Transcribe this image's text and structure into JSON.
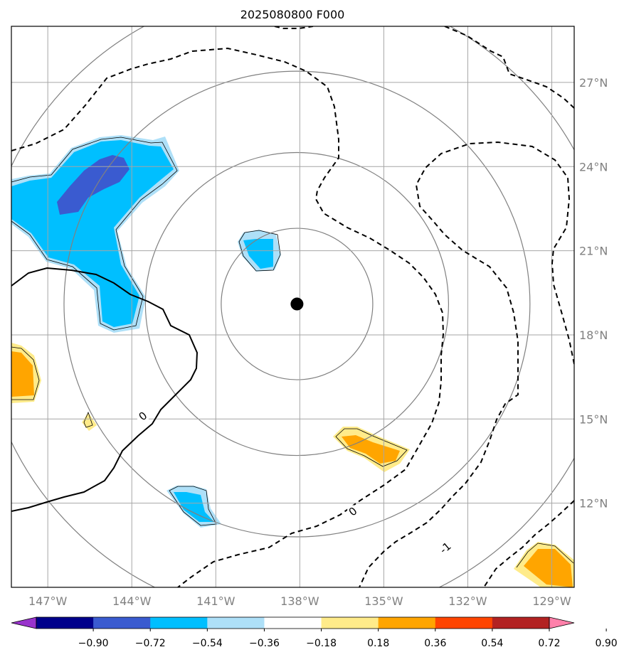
{
  "chart_data": {
    "type": "contour",
    "title": "2025080800 F000",
    "x_range": [
      -148.3,
      -128.2
    ],
    "y_range": [
      9.0,
      29.0
    ],
    "lon_ticks": [
      {
        "value": -147,
        "label": "147°W"
      },
      {
        "value": -144,
        "label": "144°W"
      },
      {
        "value": -141,
        "label": "141°W"
      },
      {
        "value": -138,
        "label": "138°W"
      },
      {
        "value": -135,
        "label": "135°W"
      },
      {
        "value": -132,
        "label": "132°W"
      },
      {
        "value": -129,
        "label": "129°W"
      }
    ],
    "lat_ticks": [
      {
        "value": 27,
        "label": "27°N"
      },
      {
        "value": 24,
        "label": "24°N"
      },
      {
        "value": 21,
        "label": "21°N"
      },
      {
        "value": 18,
        "label": "18°N"
      },
      {
        "value": 15,
        "label": "15°N"
      },
      {
        "value": 12,
        "label": "12°N"
      }
    ],
    "grid": true,
    "center": {
      "lon": -138.1,
      "lat": 19.1
    },
    "range_rings_deg": [
      2.7,
      5.4,
      8.3,
      11.3
    ],
    "colorbar": {
      "ticks": [
        "−0.90",
        "−0.72",
        "−0.54",
        "−0.36",
        "−0.18",
        "0.18",
        "0.36",
        "0.54",
        "0.72",
        "0.90"
      ],
      "colors": [
        "#9933cc",
        "#00008b",
        "#3a5bd0",
        "#00bfff",
        "#aee0f8",
        "#ffffff",
        "#ffeb8a",
        "#ffa500",
        "#ff4500",
        "#b22222",
        "#ff80aa"
      ]
    },
    "contour_labels": [
      {
        "text": "0",
        "lon": -143.6,
        "lat": 15.1
      },
      {
        "text": "0",
        "lon": -136.1,
        "lat": 11.7
      },
      {
        "text": "-1",
        "lon": -132.8,
        "lat": 10.4
      }
    ]
  }
}
